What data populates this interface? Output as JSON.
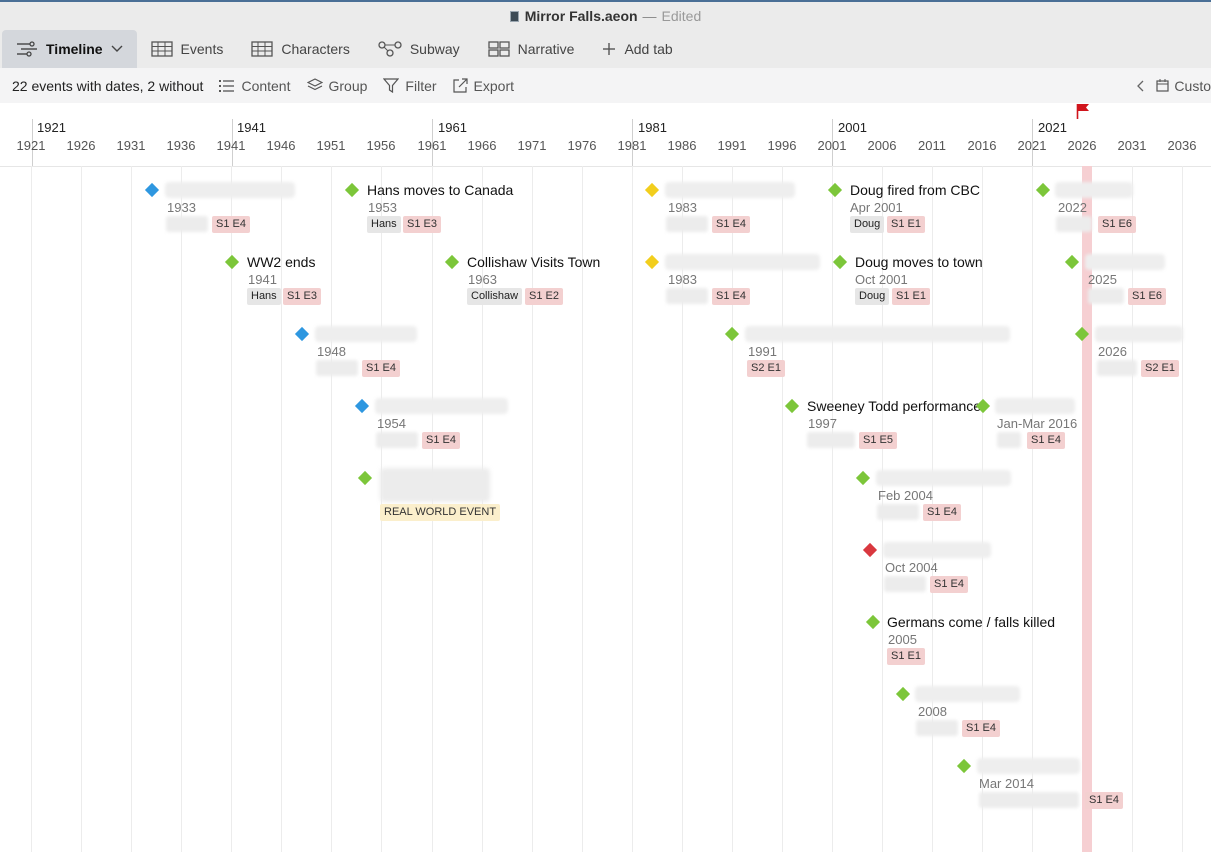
{
  "window": {
    "file_name": "Mirror Falls.aeon",
    "separator": "—",
    "status": "Edited"
  },
  "tabs": [
    {
      "label": "Timeline",
      "icon": "timeline-icon",
      "active": true
    },
    {
      "label": "Events",
      "icon": "table-icon"
    },
    {
      "label": "Characters",
      "icon": "table-icon"
    },
    {
      "label": "Subway",
      "icon": "subway-icon"
    },
    {
      "label": "Narrative",
      "icon": "narrative-icon"
    },
    {
      "label": "Add tab",
      "icon": "plus-icon"
    }
  ],
  "toolbar": {
    "summary": "22 events with dates, 2 without",
    "content": "Content",
    "group": "Group",
    "filter": "Filter",
    "export": "Export",
    "custom": "Custo"
  },
  "ruler": {
    "majors": [
      "1921",
      "1941",
      "1961",
      "1981",
      "2001",
      "2021"
    ],
    "minors": [
      "1921",
      "1926",
      "1931",
      "1936",
      "1941",
      "1946",
      "1951",
      "1956",
      "1961",
      "1966",
      "1971",
      "1976",
      "1981",
      "1986",
      "1991",
      "1996",
      "2001",
      "2006",
      "2011",
      "2016",
      "2021",
      "2026",
      "2031",
      "2036"
    ]
  },
  "colors": {
    "green": "#7cc63a",
    "blue": "#2e97e0",
    "yellow": "#f2ce1d",
    "red": "#d9383f",
    "now": "#f6cfd2",
    "flag": "#d0141c"
  },
  "events": {
    "e1": {
      "date": "1933",
      "ep": "S1 E4"
    },
    "e2": {
      "title": "Hans moves to Canada",
      "date": "1953",
      "char": "Hans",
      "ep": "S1 E3"
    },
    "e3": {
      "date": "1983",
      "ep": "S1 E4"
    },
    "e4": {
      "title": "Doug fired from CBC",
      "date": "Apr 2001",
      "char": "Doug",
      "ep": "S1 E1"
    },
    "e5": {
      "date": "2022",
      "ep": "S1 E6"
    },
    "e6": {
      "title": "WW2 ends",
      "date": "1941",
      "char": "Hans",
      "ep": "S1 E3"
    },
    "e7": {
      "title": "Collishaw Visits Town",
      "date": "1963",
      "char": "Collishaw",
      "ep": "S1 E2"
    },
    "e8": {
      "date": "1983",
      "ep": "S1 E4"
    },
    "e9": {
      "title": "Doug moves to town",
      "date": "Oct 2001",
      "char": "Doug",
      "ep": "S1 E1"
    },
    "e10": {
      "date": "2025",
      "ep": "S1 E6"
    },
    "e11": {
      "date": "1948",
      "ep": "S1 E4"
    },
    "e12": {
      "date": "1991",
      "ep": "S2 E1"
    },
    "e13": {
      "date": "2026",
      "ep": "S2 E1"
    },
    "e14": {
      "date": "1954",
      "ep": "S1 E4"
    },
    "e15": {
      "title": "Sweeney Todd performance",
      "date": "1997",
      "ep": "S1 E5"
    },
    "e16": {
      "date": "Jan-Mar 2016",
      "ep": "S1 E4"
    },
    "e17": {
      "tag": "REAL WORLD EVENT"
    },
    "e18": {
      "date": "Feb 2004",
      "ep": "S1 E4"
    },
    "e19": {
      "date": "Oct 2004",
      "ep": "S1 E4"
    },
    "e20": {
      "title": "Germans come / falls killed",
      "date": "2005",
      "ep": "S1 E1"
    },
    "e21": {
      "date": "2008",
      "ep": "S1 E4"
    },
    "e22": {
      "date": "Mar 2014",
      "ep": "S1 E4"
    }
  }
}
